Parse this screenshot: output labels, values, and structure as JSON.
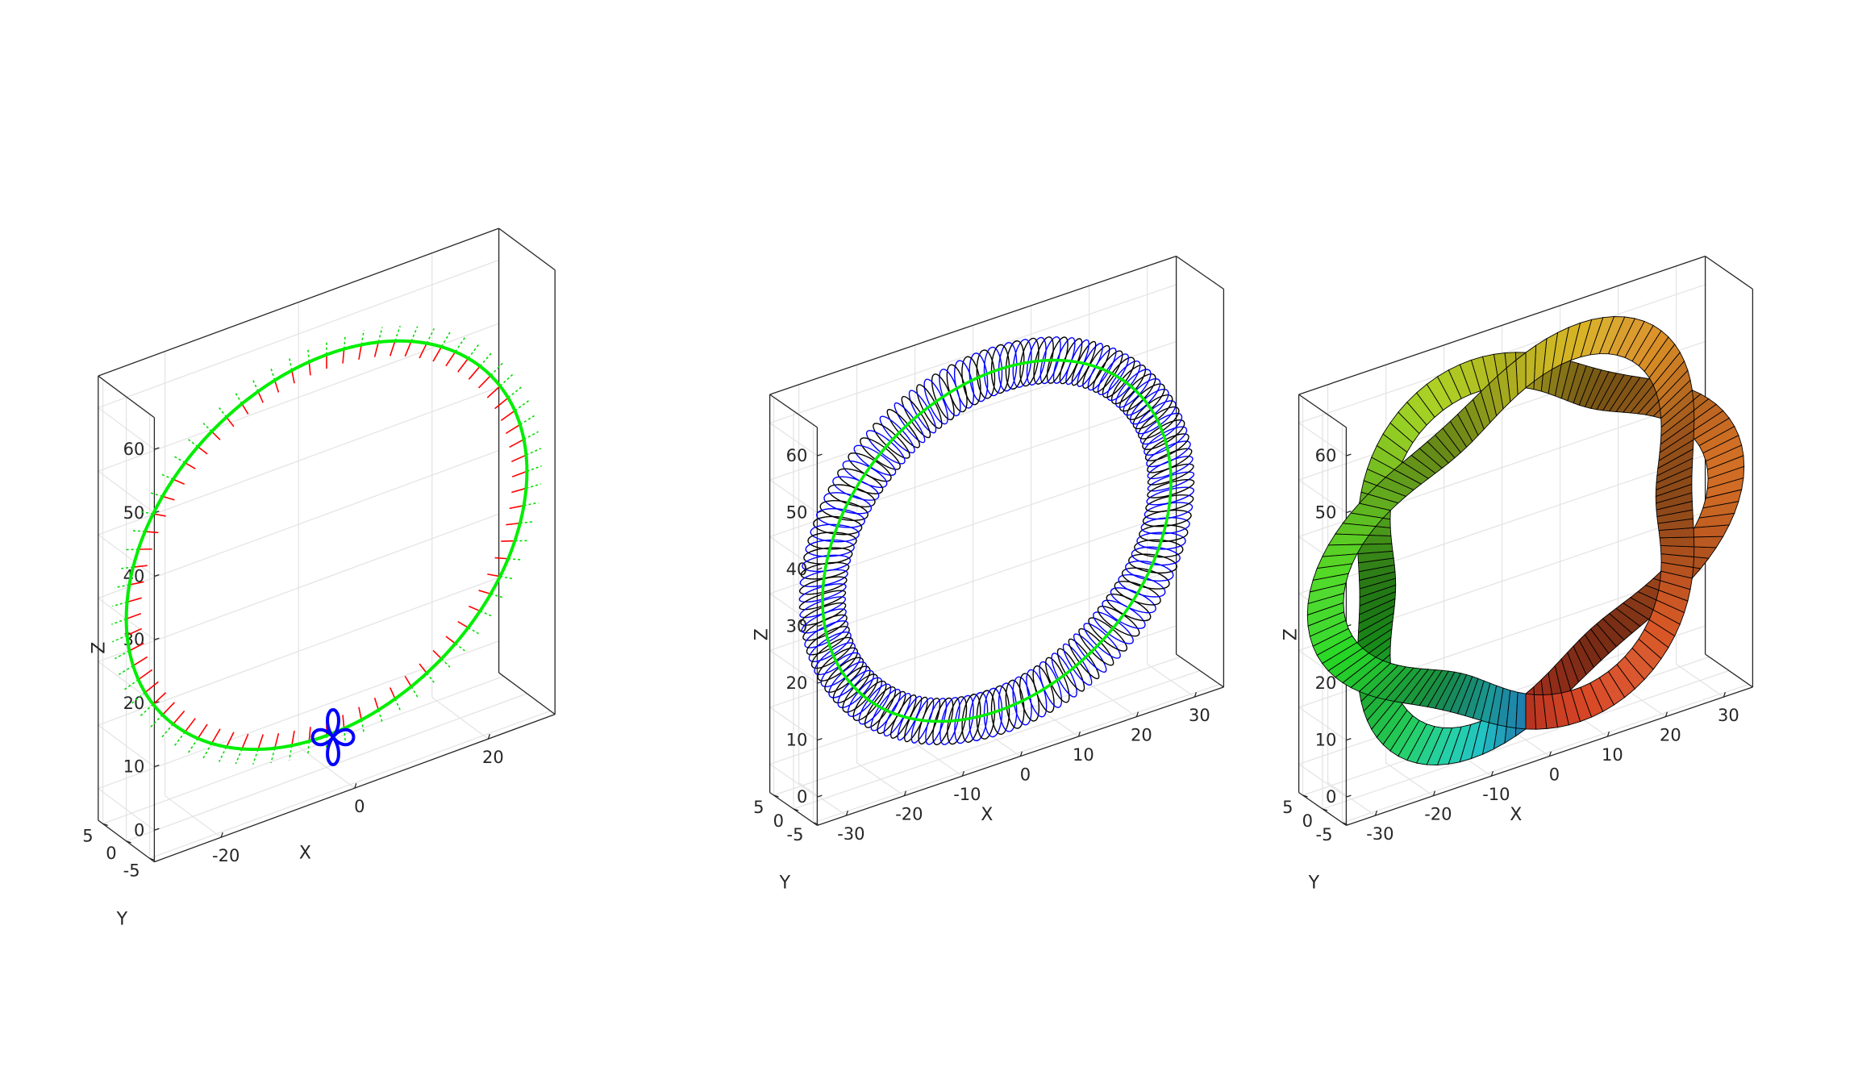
{
  "chart_data": [
    {
      "type": "line3d",
      "panel": 1,
      "xlabel": "X",
      "ylabel": "Y",
      "zlabel": "Z",
      "x_ticks": [
        -20,
        0,
        20
      ],
      "y_ticks": [
        -5,
        0,
        5
      ],
      "z_ticks": [
        0,
        10,
        20,
        30,
        40,
        50,
        60
      ],
      "xlim": [
        -30,
        30
      ],
      "ylim": [
        -6,
        6
      ],
      "zlim": [
        -5,
        65
      ],
      "grid": true,
      "box": true,
      "curve": {
        "shape": "circle",
        "center": [
          0,
          0,
          30
        ],
        "radius": 30,
        "plane": "x-z",
        "color": "#00ee00"
      },
      "normal_vectors_color": "#ff0000",
      "binormal_vectors_color": "#00dd00",
      "cross_section": {
        "shape": "four-petal flower",
        "color": "#0000ff"
      }
    },
    {
      "type": "line3d",
      "panel": 2,
      "xlabel": "X",
      "ylabel": "Y",
      "zlabel": "Z",
      "x_ticks": [
        -30,
        -20,
        -10,
        0,
        10,
        20,
        30
      ],
      "y_ticks": [
        -5,
        0,
        5
      ],
      "z_ticks": [
        0,
        10,
        20,
        30,
        40,
        50,
        60
      ],
      "xlim": [
        -35,
        35
      ],
      "ylim": [
        -6,
        6
      ],
      "zlim": [
        -5,
        65
      ],
      "grid": true,
      "box": true,
      "curve": {
        "shape": "circle",
        "center": [
          0,
          0,
          30
        ],
        "radius": 30,
        "plane": "x-z",
        "color": "#00ee00"
      },
      "sweep_loops_colors": [
        "#0000ff",
        "#000000"
      ]
    },
    {
      "type": "surface3d",
      "panel": 3,
      "xlabel": "X",
      "ylabel": "Y",
      "zlabel": "Z",
      "x_ticks": [
        -30,
        -20,
        -10,
        0,
        10,
        20,
        30
      ],
      "y_ticks": [
        -5,
        0,
        5
      ],
      "z_ticks": [
        0,
        10,
        20,
        30,
        40,
        50,
        60
      ],
      "xlim": [
        -35,
        35
      ],
      "ylim": [
        -6,
        6
      ],
      "zlim": [
        -5,
        65
      ],
      "grid": true,
      "box": true,
      "surface": {
        "shape": "twisted swept torus",
        "colormap": "hue around loop",
        "edge_color": "#000000"
      }
    }
  ]
}
